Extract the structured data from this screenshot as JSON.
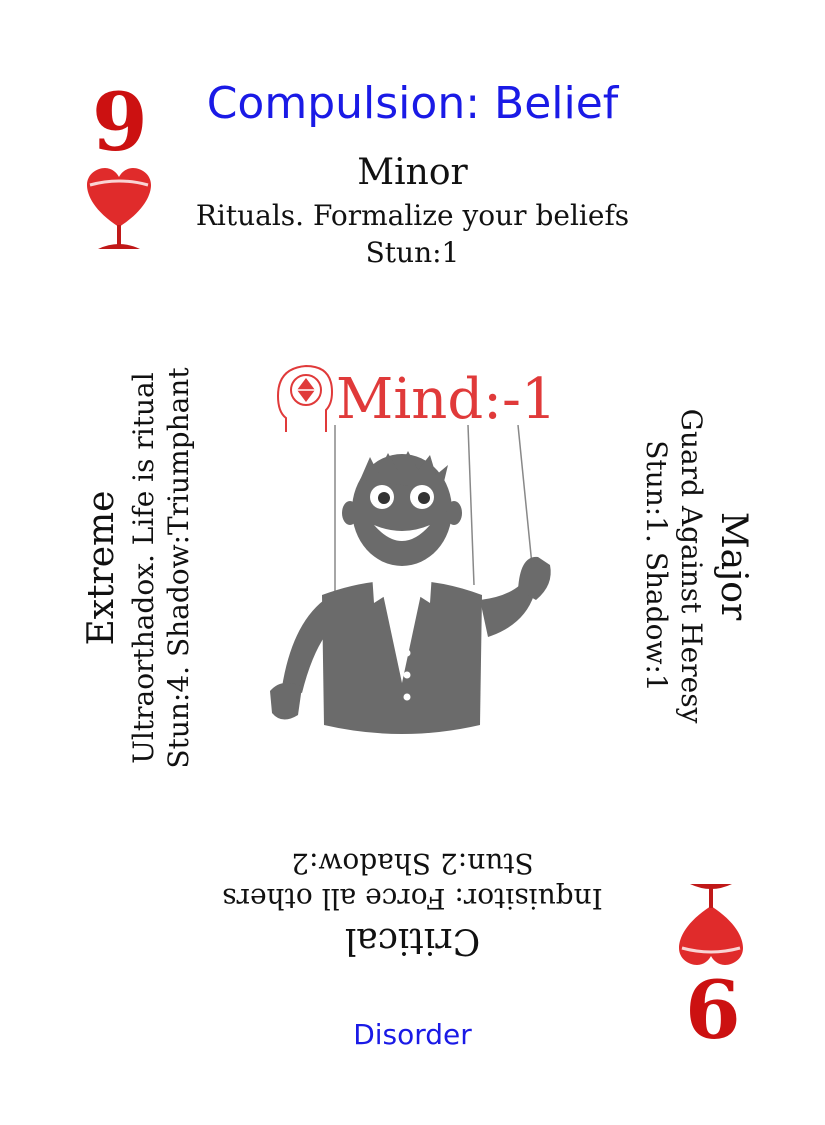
{
  "card": {
    "rank": "9",
    "rank_inverted": "6",
    "suit": "heart-chalice-icon",
    "title": "Compulsion: Belief",
    "footer": "Disorder"
  },
  "levels": {
    "minor": {
      "name": "Minor",
      "effect": "Rituals. Formalize your beliefs",
      "stats": "Stun:1"
    },
    "major": {
      "name": "Major",
      "effect": "Guard Against Heresy",
      "stats": "Stun:1. Shadow:1"
    },
    "critical": {
      "name": "Critical",
      "effect": "Inquisitor: Force all others",
      "stats": "Stun:2 Shadow:2"
    },
    "extreme": {
      "name": "Extreme",
      "effect": "Ultraorthadox. Life is ritual",
      "stats": "Stun:4. Shadow:Triumphant"
    }
  },
  "center": {
    "stat_label": "Mind:-1",
    "stat_icon": "mind-head-icon",
    "illustration": "puppet-figure-icon"
  },
  "colors": {
    "suit_red": "#cc1111",
    "title_blue": "#1a1ae6",
    "stat_red": "#e03a3a",
    "figure_gray": "#6b6b6b"
  }
}
